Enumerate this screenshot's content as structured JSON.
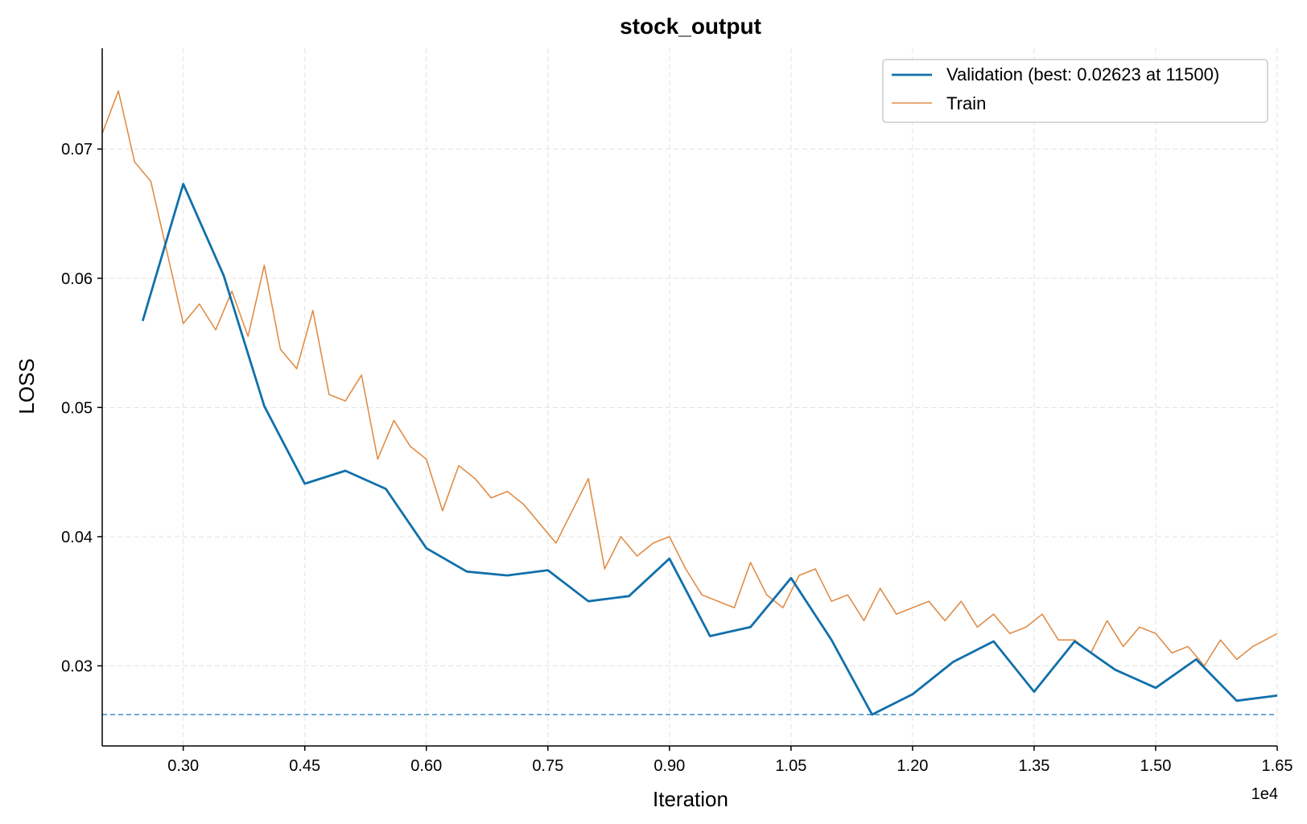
{
  "chart_data": {
    "type": "line",
    "title": "stock_output",
    "xlabel": "Iteration",
    "ylabel": "LOSS",
    "x_multiplier_label": "1e4",
    "xlim": [
      0.2,
      1.65
    ],
    "ylim": [
      0.0238,
      0.0778
    ],
    "x_ticks": [
      0.3,
      0.45,
      0.6,
      0.75,
      0.9,
      1.05,
      1.2,
      1.35,
      1.5,
      1.65
    ],
    "x_tick_labels": [
      "0.30",
      "0.45",
      "0.60",
      "0.75",
      "0.90",
      "1.05",
      "1.20",
      "1.35",
      "1.50",
      "1.65"
    ],
    "y_ticks": [
      0.03,
      0.04,
      0.05,
      0.06,
      0.07
    ],
    "y_tick_labels": [
      "0.03",
      "0.04",
      "0.05",
      "0.06",
      "0.07"
    ],
    "grid": true,
    "legend_position": "top-right",
    "best_line": {
      "y": 0.02623,
      "color": "#3a8fc4"
    },
    "series": [
      {
        "name": "Validation (best: 0.02623 at 11500)",
        "color": "#1170aa",
        "x": [
          0.25,
          0.3,
          0.35,
          0.4,
          0.45,
          0.5,
          0.55,
          0.6,
          0.65,
          0.7,
          0.75,
          0.8,
          0.85,
          0.9,
          0.95,
          1.0,
          1.05,
          1.1,
          1.15,
          1.2,
          1.25,
          1.3,
          1.35,
          1.4,
          1.45,
          1.5,
          1.55,
          1.6,
          1.65
        ],
        "values": [
          0.0567,
          0.0673,
          0.0602,
          0.0501,
          0.0441,
          0.0451,
          0.0437,
          0.0391,
          0.0373,
          0.037,
          0.0374,
          0.035,
          0.0354,
          0.0383,
          0.0323,
          0.033,
          0.0368,
          0.032,
          0.02623,
          0.0278,
          0.0303,
          0.0319,
          0.028,
          0.0319,
          0.0297,
          0.0283,
          0.0305,
          0.0273,
          0.0277
        ]
      },
      {
        "name": "Train",
        "color": "#e08d47",
        "x": [
          0.2,
          0.22,
          0.24,
          0.26,
          0.28,
          0.3,
          0.32,
          0.34,
          0.36,
          0.38,
          0.4,
          0.42,
          0.44,
          0.46,
          0.48,
          0.5,
          0.52,
          0.54,
          0.56,
          0.58,
          0.6,
          0.62,
          0.64,
          0.66,
          0.68,
          0.7,
          0.72,
          0.74,
          0.76,
          0.78,
          0.8,
          0.82,
          0.84,
          0.86,
          0.88,
          0.9,
          0.92,
          0.94,
          0.96,
          0.98,
          1.0,
          1.02,
          1.04,
          1.06,
          1.08,
          1.1,
          1.12,
          1.14,
          1.16,
          1.18,
          1.2,
          1.22,
          1.24,
          1.26,
          1.28,
          1.3,
          1.32,
          1.34,
          1.36,
          1.38,
          1.4,
          1.42,
          1.44,
          1.46,
          1.48,
          1.5,
          1.52,
          1.54,
          1.56,
          1.58,
          1.6,
          1.62,
          1.65
        ],
        "values": [
          0.0712,
          0.0745,
          0.069,
          0.0675,
          0.062,
          0.0565,
          0.058,
          0.056,
          0.059,
          0.0555,
          0.061,
          0.0545,
          0.053,
          0.0575,
          0.051,
          0.0505,
          0.0525,
          0.046,
          0.049,
          0.047,
          0.046,
          0.042,
          0.0455,
          0.0445,
          0.043,
          0.0435,
          0.0425,
          0.041,
          0.0395,
          0.042,
          0.0445,
          0.0375,
          0.04,
          0.0385,
          0.0395,
          0.04,
          0.0375,
          0.0355,
          0.035,
          0.0345,
          0.038,
          0.0355,
          0.0345,
          0.037,
          0.0375,
          0.035,
          0.0355,
          0.0335,
          0.036,
          0.034,
          0.0345,
          0.035,
          0.0335,
          0.035,
          0.033,
          0.034,
          0.0325,
          0.033,
          0.034,
          0.032,
          0.032,
          0.031,
          0.0335,
          0.0315,
          0.033,
          0.0325,
          0.031,
          0.0315,
          0.03,
          0.032,
          0.0305,
          0.0315,
          0.0325
        ]
      }
    ]
  }
}
